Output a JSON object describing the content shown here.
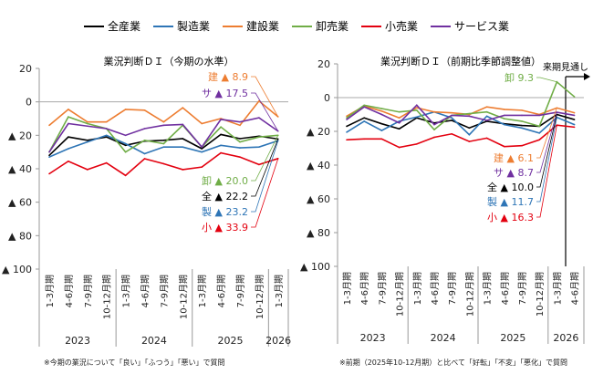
{
  "legend": [
    {
      "name": "全産業",
      "color": "#000000"
    },
    {
      "name": "製造業",
      "color": "#2e75b6"
    },
    {
      "name": "建設業",
      "color": "#ed7d31"
    },
    {
      "name": "卸売業",
      "color": "#70ad47"
    },
    {
      "name": "小売業",
      "color": "#e3000f"
    },
    {
      "name": "サービス業",
      "color": "#7030a0"
    }
  ],
  "chart_data": [
    {
      "type": "line",
      "title": "業況判断ＤＩ（今期の水準）",
      "ylim": [
        -100,
        20
      ],
      "yticks": [
        20,
        0,
        -20,
        -40,
        -60,
        -80,
        -100
      ],
      "ytick_labels": [
        "20",
        "0",
        "▲ 20",
        "▲ 40",
        "▲ 60",
        "▲ 80",
        "▲ 100"
      ],
      "categories": [
        "1-3月期",
        "4-6月期",
        "7-9月期",
        "10-12月期",
        "1-3月期",
        "4-6月期",
        "7-9月期",
        "10-12月期",
        "1-3月期",
        "4-6月期",
        "7-9月期",
        "10-12月期",
        "1-3月期"
      ],
      "years": [
        {
          "label": "2023",
          "span": 4
        },
        {
          "label": "2024",
          "span": 4
        },
        {
          "label": "2025",
          "span": 4
        },
        {
          "label": "2026",
          "span": 1
        }
      ],
      "series": [
        {
          "name": "全産業",
          "values": [
            -32,
            -21,
            -23,
            -21,
            -26,
            -23.5,
            -23,
            -22,
            -28,
            -19.5,
            -22,
            -20.5,
            -22.2
          ]
        },
        {
          "name": "製造業",
          "values": [
            -33,
            -28,
            -24,
            -20,
            -25,
            -31,
            -27,
            -27,
            -30,
            -26,
            -27.5,
            -27,
            -23.2
          ]
        },
        {
          "name": "建設業",
          "values": [
            -14,
            -4.5,
            -12,
            -12,
            -4.5,
            -5,
            -12,
            -3.5,
            -13,
            -10,
            -14,
            0.5,
            -8.9
          ]
        },
        {
          "name": "卸売業",
          "values": [
            -30,
            -9,
            -13,
            -16,
            -30,
            -23,
            -25,
            -14,
            -27,
            -15,
            -24,
            -21,
            -20.0
          ]
        },
        {
          "name": "小売業",
          "values": [
            -43,
            -35.5,
            -40.5,
            -36.5,
            -44,
            -34,
            -37,
            -40.5,
            -39,
            -30.5,
            -33,
            -37.5,
            -33.9
          ]
        },
        {
          "name": "サービス業",
          "values": [
            -30,
            -13,
            -14.5,
            -16,
            -20,
            -16,
            -14,
            -13.5,
            -27,
            -10.5,
            -12,
            -9.5,
            -17.5
          ]
        }
      ],
      "annotations": [
        {
          "series": "建設業",
          "text": "建 ▲ 8.9"
        },
        {
          "series": "サービス業",
          "text": "サ ▲ 17.5"
        },
        {
          "series": "卸売業",
          "text": "卸 ▲ 20.0"
        },
        {
          "series": "全産業",
          "text": "全 ▲ 22.2"
        },
        {
          "series": "製造業",
          "text": "製 ▲ 23.2"
        },
        {
          "series": "小売業",
          "text": "小 ▲ 33.9"
        }
      ],
      "footnote": "※今期の業況について「良い」「ふつう」「悪い」で質問"
    },
    {
      "type": "line",
      "title": "業況判断ＤＩ（前期比季節調整値）",
      "ylim": [
        -100,
        20
      ],
      "yticks": [
        20,
        0,
        -20,
        -40,
        -60,
        -80,
        -100
      ],
      "ytick_labels": [
        "20",
        "0",
        "▲ 20",
        "▲ 40",
        "▲ 60",
        "▲ 80",
        "▲ 100"
      ],
      "categories": [
        "1-3月期",
        "4-6月期",
        "7-9月期",
        "10-12月期",
        "1-3月期",
        "4-6月期",
        "7-9月期",
        "10-12月期",
        "1-3月期",
        "4-6月期",
        "7-9月期",
        "10-12月期",
        "1-3月期",
        "4-6月期"
      ],
      "years": [
        {
          "label": "2023",
          "span": 4
        },
        {
          "label": "2024",
          "span": 4
        },
        {
          "label": "2025",
          "span": 4
        },
        {
          "label": "2026",
          "span": 2
        }
      ],
      "outlook_label": "来期見通し",
      "series": [
        {
          "name": "全産業",
          "values": [
            -17,
            -12,
            -15.5,
            -18.5,
            -12,
            -15,
            -13.5,
            -18,
            -14,
            -15.5,
            -16.5,
            -17,
            -10.0,
            -13
          ]
        },
        {
          "name": "製造業",
          "values": [
            -20.5,
            -14,
            -19.5,
            -14,
            -11.5,
            -8.5,
            -12,
            -22,
            -11,
            -16,
            -18,
            -21,
            -11.7,
            -16
          ]
        },
        {
          "name": "建設業",
          "values": [
            -11,
            -5,
            -8,
            -12,
            -6,
            -8.5,
            -9,
            -10,
            -5.5,
            -7,
            -7.5,
            -10,
            -6.1,
            -9
          ]
        },
        {
          "name": "卸売業",
          "values": [
            -12,
            -4.5,
            -6.5,
            -8.5,
            -7.5,
            -19,
            -10.5,
            -9.5,
            -8.5,
            -12.5,
            -14,
            -17,
            9.3,
            0.5
          ]
        },
        {
          "name": "小売業",
          "values": [
            -25,
            -24.5,
            -24.5,
            -29.5,
            -27.5,
            -23.5,
            -21.5,
            -26,
            -24,
            -29,
            -28.5,
            -25,
            -16.3,
            -17.5
          ]
        },
        {
          "name": "サービス業",
          "values": [
            -13,
            -5.5,
            -10,
            -15,
            -4.5,
            -16,
            -10.5,
            -11,
            -13.5,
            -10.5,
            -10.5,
            -10.5,
            -8.7,
            -10.5
          ]
        }
      ],
      "annotations": [
        {
          "series": "卸売業",
          "text": "卸 9.3"
        },
        {
          "series": "建設業",
          "text": "建 ▲ 6.1"
        },
        {
          "series": "サービス業",
          "text": "サ ▲ 8.7"
        },
        {
          "series": "全産業",
          "text": "全 ▲ 10.0"
        },
        {
          "series": "製造業",
          "text": "製 ▲ 11.7"
        },
        {
          "series": "小売業",
          "text": "小 ▲ 16.3"
        }
      ],
      "footnote": "※前期（2025年10-12月期）と比べて「好転」「不変」「悪化」で質問"
    }
  ]
}
